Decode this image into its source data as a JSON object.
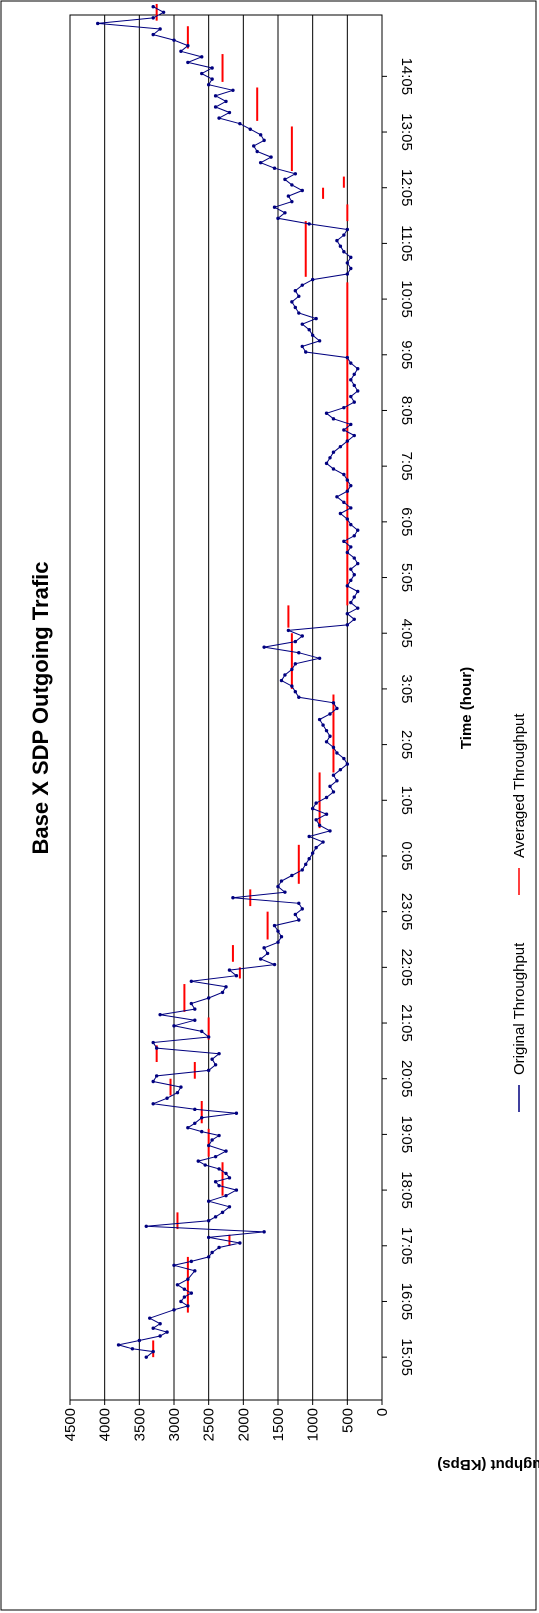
{
  "chart_data": {
    "type": "line",
    "title": "Base X SDP Outgoing Trafic",
    "xlabel": "Time (hour)",
    "ylabel": "Throughput (KBps)",
    "ylim": [
      0,
      4500
    ],
    "y_ticks": [
      "0",
      "500",
      "1000",
      "1500",
      "2000",
      "2500",
      "3000",
      "3500",
      "4000",
      "4500"
    ],
    "x_ticks": [
      "15:05",
      "16:05",
      "17:05",
      "18:05",
      "19:05",
      "20:05",
      "21:05",
      "22:05",
      "23:05",
      "0:05",
      "1:05",
      "2:05",
      "3:05",
      "4:05",
      "5:05",
      "6:05",
      "7:05",
      "8:05",
      "9:05",
      "10:05",
      "11:05",
      "12:05",
      "13:05",
      "14:05"
    ],
    "xlim": [
      -0.5,
      23.5
    ],
    "grid": true,
    "legend_position": "bottom",
    "colors": {
      "original": "#00007f",
      "averaged": "#ff0000",
      "grid": "#000000"
    },
    "series": [
      {
        "name": "Original Throughput",
        "values": [
          [
            0.0,
            3400
          ],
          [
            0.1,
            3300
          ],
          [
            0.15,
            3600
          ],
          [
            0.22,
            3800
          ],
          [
            0.3,
            3500
          ],
          [
            0.38,
            3200
          ],
          [
            0.45,
            3100
          ],
          [
            0.52,
            3300
          ],
          [
            0.6,
            3200
          ],
          [
            0.7,
            3350
          ],
          [
            0.85,
            3000
          ],
          [
            0.92,
            2800
          ],
          [
            1.0,
            2900
          ],
          [
            1.08,
            2850
          ],
          [
            1.15,
            2750
          ],
          [
            1.22,
            2850
          ],
          [
            1.3,
            2950
          ],
          [
            1.4,
            2800
          ],
          [
            1.55,
            2700
          ],
          [
            1.65,
            3000
          ],
          [
            1.72,
            2750
          ],
          [
            1.8,
            2500
          ],
          [
            1.88,
            2450
          ],
          [
            1.97,
            2350
          ],
          [
            2.05,
            2050
          ],
          [
            2.15,
            2500
          ],
          [
            2.25,
            1700
          ],
          [
            2.35,
            3400
          ],
          [
            2.45,
            2500
          ],
          [
            2.52,
            2400
          ],
          [
            2.6,
            2300
          ],
          [
            2.7,
            2200
          ],
          [
            2.8,
            2500
          ],
          [
            2.9,
            2250
          ],
          [
            3.0,
            2100
          ],
          [
            3.08,
            2350
          ],
          [
            3.15,
            2400
          ],
          [
            3.22,
            2200
          ],
          [
            3.3,
            2250
          ],
          [
            3.38,
            2350
          ],
          [
            3.45,
            2550
          ],
          [
            3.52,
            2650
          ],
          [
            3.6,
            2400
          ],
          [
            3.7,
            2250
          ],
          [
            3.8,
            2500
          ],
          [
            3.9,
            2450
          ],
          [
            3.98,
            2350
          ],
          [
            4.05,
            2600
          ],
          [
            4.12,
            2800
          ],
          [
            4.2,
            2700
          ],
          [
            4.3,
            2600
          ],
          [
            4.38,
            2100
          ],
          [
            4.45,
            2700
          ],
          [
            4.55,
            3300
          ],
          [
            4.65,
            3100
          ],
          [
            4.75,
            2950
          ],
          [
            4.85,
            2900
          ],
          [
            4.95,
            3300
          ],
          [
            5.05,
            3250
          ],
          [
            5.15,
            2500
          ],
          [
            5.25,
            2400
          ],
          [
            5.35,
            2450
          ],
          [
            5.45,
            2350
          ],
          [
            5.55,
            3250
          ],
          [
            5.65,
            3300
          ],
          [
            5.75,
            2500
          ],
          [
            5.85,
            2600
          ],
          [
            5.95,
            3000
          ],
          [
            6.05,
            2700
          ],
          [
            6.15,
            3200
          ],
          [
            6.25,
            2700
          ],
          [
            6.35,
            2750
          ],
          [
            6.45,
            2500
          ],
          [
            6.55,
            2300
          ],
          [
            6.65,
            2250
          ],
          [
            6.75,
            2750
          ],
          [
            6.85,
            2100
          ],
          [
            6.95,
            2200
          ],
          [
            7.05,
            1550
          ],
          [
            7.15,
            1750
          ],
          [
            7.25,
            1650
          ],
          [
            7.35,
            1700
          ],
          [
            7.45,
            1500
          ],
          [
            7.55,
            1450
          ],
          [
            7.65,
            1500
          ],
          [
            7.75,
            1550
          ],
          [
            7.85,
            1200
          ],
          [
            7.95,
            1250
          ],
          [
            8.05,
            1150
          ],
          [
            8.15,
            1200
          ],
          [
            8.25,
            2150
          ],
          [
            8.35,
            1400
          ],
          [
            8.45,
            1500
          ],
          [
            8.55,
            1450
          ],
          [
            8.65,
            1300
          ],
          [
            8.75,
            1150
          ],
          [
            8.85,
            1100
          ],
          [
            8.95,
            1050
          ],
          [
            9.05,
            1000
          ],
          [
            9.15,
            950
          ],
          [
            9.25,
            850
          ],
          [
            9.35,
            1050
          ],
          [
            9.45,
            750
          ],
          [
            9.55,
            900
          ],
          [
            9.65,
            950
          ],
          [
            9.75,
            800
          ],
          [
            9.85,
            1000
          ],
          [
            9.95,
            950
          ],
          [
            10.05,
            800
          ],
          [
            10.15,
            700
          ],
          [
            10.25,
            750
          ],
          [
            10.35,
            650
          ],
          [
            10.45,
            700
          ],
          [
            10.55,
            600
          ],
          [
            10.65,
            500
          ],
          [
            10.75,
            550
          ],
          [
            10.85,
            650
          ],
          [
            10.95,
            700
          ],
          [
            11.05,
            800
          ],
          [
            11.15,
            750
          ],
          [
            11.25,
            800
          ],
          [
            11.35,
            850
          ],
          [
            11.45,
            900
          ],
          [
            11.55,
            750
          ],
          [
            11.65,
            650
          ],
          [
            11.75,
            700
          ],
          [
            11.85,
            1200
          ],
          [
            11.95,
            1250
          ],
          [
            12.05,
            1300
          ],
          [
            12.15,
            1450
          ],
          [
            12.25,
            1400
          ],
          [
            12.35,
            1300
          ],
          [
            12.45,
            1250
          ],
          [
            12.55,
            900
          ],
          [
            12.65,
            1200
          ],
          [
            12.75,
            1700
          ],
          [
            12.85,
            1250
          ],
          [
            12.95,
            1150
          ],
          [
            13.05,
            1350
          ],
          [
            13.15,
            500
          ],
          [
            13.25,
            400
          ],
          [
            13.35,
            500
          ],
          [
            13.45,
            350
          ],
          [
            13.55,
            450
          ],
          [
            13.65,
            400
          ],
          [
            13.75,
            350
          ],
          [
            13.85,
            500
          ],
          [
            13.95,
            450
          ],
          [
            14.05,
            400
          ],
          [
            14.15,
            450
          ],
          [
            14.25,
            350
          ],
          [
            14.35,
            400
          ],
          [
            14.45,
            500
          ],
          [
            14.55,
            450
          ],
          [
            14.65,
            550
          ],
          [
            14.75,
            400
          ],
          [
            14.85,
            350
          ],
          [
            14.95,
            450
          ],
          [
            15.05,
            500
          ],
          [
            15.15,
            600
          ],
          [
            15.25,
            450
          ],
          [
            15.35,
            550
          ],
          [
            15.45,
            650
          ],
          [
            15.55,
            500
          ],
          [
            15.65,
            450
          ],
          [
            15.75,
            500
          ],
          [
            15.85,
            550
          ],
          [
            15.95,
            700
          ],
          [
            16.05,
            800
          ],
          [
            16.15,
            750
          ],
          [
            16.25,
            700
          ],
          [
            16.35,
            600
          ],
          [
            16.45,
            500
          ],
          [
            16.55,
            400
          ],
          [
            16.65,
            550
          ],
          [
            16.75,
            450
          ],
          [
            16.85,
            700
          ],
          [
            16.95,
            800
          ],
          [
            17.05,
            550
          ],
          [
            17.15,
            400
          ],
          [
            17.25,
            450
          ],
          [
            17.35,
            350
          ],
          [
            17.45,
            400
          ],
          [
            17.55,
            450
          ],
          [
            17.65,
            400
          ],
          [
            17.75,
            350
          ],
          [
            17.85,
            450
          ],
          [
            17.95,
            500
          ],
          [
            18.05,
            1100
          ],
          [
            18.15,
            1150
          ],
          [
            18.25,
            900
          ],
          [
            18.35,
            1000
          ],
          [
            18.45,
            1050
          ],
          [
            18.55,
            1150
          ],
          [
            18.65,
            950
          ],
          [
            18.75,
            1200
          ],
          [
            18.85,
            1250
          ],
          [
            18.95,
            1300
          ],
          [
            19.05,
            1200
          ],
          [
            19.15,
            1250
          ],
          [
            19.25,
            1150
          ],
          [
            19.35,
            1000
          ],
          [
            19.45,
            500
          ],
          [
            19.55,
            450
          ],
          [
            19.65,
            500
          ],
          [
            19.75,
            450
          ],
          [
            19.85,
            550
          ],
          [
            19.95,
            600
          ],
          [
            20.05,
            650
          ],
          [
            20.15,
            550
          ],
          [
            20.25,
            500
          ],
          [
            20.35,
            1050
          ],
          [
            20.45,
            1500
          ],
          [
            20.55,
            1400
          ],
          [
            20.65,
            1550
          ],
          [
            20.75,
            1300
          ],
          [
            20.85,
            1350
          ],
          [
            20.95,
            1150
          ],
          [
            21.05,
            1300
          ],
          [
            21.15,
            1400
          ],
          [
            21.25,
            1250
          ],
          [
            21.35,
            1550
          ],
          [
            21.45,
            1750
          ],
          [
            21.55,
            1600
          ],
          [
            21.65,
            1800
          ],
          [
            21.75,
            1850
          ],
          [
            21.85,
            1700
          ],
          [
            21.95,
            1750
          ],
          [
            22.05,
            1900
          ],
          [
            22.15,
            2050
          ],
          [
            22.25,
            2350
          ],
          [
            22.35,
            2200
          ],
          [
            22.45,
            2400
          ],
          [
            22.55,
            2250
          ],
          [
            22.65,
            2400
          ],
          [
            22.75,
            2150
          ],
          [
            22.85,
            2500
          ],
          [
            22.95,
            2450
          ],
          [
            23.05,
            2600
          ],
          [
            23.15,
            2450
          ],
          [
            23.25,
            2800
          ],
          [
            23.35,
            2600
          ],
          [
            23.45,
            2900
          ],
          [
            23.55,
            2800
          ],
          [
            23.65,
            3000
          ],
          [
            23.75,
            3300
          ],
          [
            23.85,
            3200
          ],
          [
            23.95,
            4100
          ],
          [
            24.05,
            3300
          ],
          [
            24.15,
            3150
          ],
          [
            24.25,
            3300
          ]
        ]
      },
      {
        "name": "Averaged Throughput",
        "segments": [
          [
            0.0,
            0.3,
            3300
          ],
          [
            0.8,
            1.8,
            2800
          ],
          [
            2.0,
            2.2,
            2200
          ],
          [
            2.3,
            2.6,
            2950
          ],
          [
            2.9,
            3.5,
            2300
          ],
          [
            3.6,
            4.1,
            2500
          ],
          [
            4.2,
            4.6,
            2600
          ],
          [
            4.7,
            5.0,
            3050
          ],
          [
            5.0,
            5.3,
            2700
          ],
          [
            5.3,
            5.6,
            3250
          ],
          [
            5.7,
            6.1,
            2500
          ],
          [
            6.2,
            6.7,
            2850
          ],
          [
            6.8,
            7.0,
            2050
          ],
          [
            7.1,
            7.4,
            2150
          ],
          [
            7.5,
            8.0,
            1650
          ],
          [
            8.1,
            8.4,
            1900
          ],
          [
            8.5,
            9.2,
            1200
          ],
          [
            9.5,
            10.5,
            900
          ],
          [
            10.5,
            11.9,
            700
          ],
          [
            12.0,
            13.0,
            1300
          ],
          [
            13.1,
            13.5,
            1350
          ],
          [
            13.5,
            19.3,
            500
          ],
          [
            19.4,
            20.4,
            1100
          ],
          [
            20.4,
            20.7,
            500
          ],
          [
            20.8,
            21.0,
            850
          ],
          [
            21.0,
            21.2,
            550
          ],
          [
            21.3,
            22.1,
            1300
          ],
          [
            22.2,
            22.8,
            1800
          ],
          [
            22.9,
            23.4,
            2300
          ],
          [
            23.5,
            23.9,
            2800
          ],
          [
            24.0,
            24.3,
            3250
          ]
        ]
      }
    ]
  }
}
